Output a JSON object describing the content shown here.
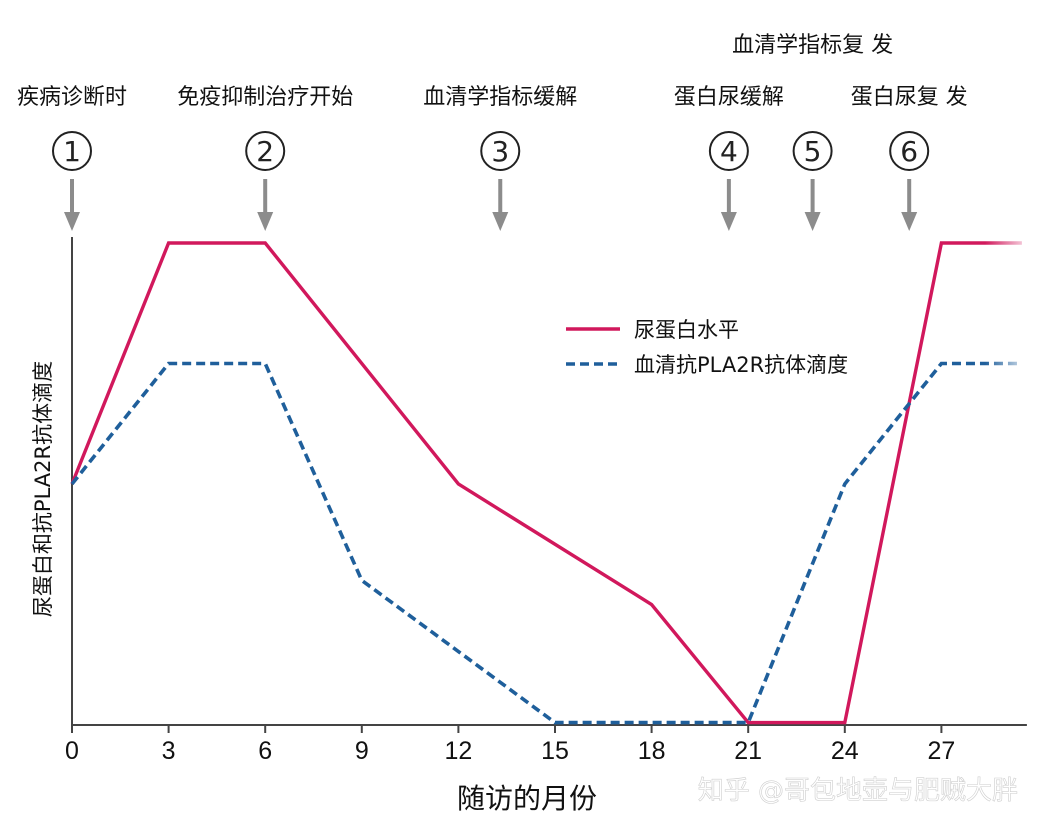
{
  "chart_data": {
    "type": "line",
    "xlabel": "随访的月份",
    "ylabel": "尿蛋白和抗PLA2R抗体滴度",
    "xticks": [
      0,
      3,
      6,
      9,
      12,
      15,
      18,
      21,
      24,
      27
    ],
    "xlim": [
      0,
      29.5
    ],
    "ylim": [
      0,
      100
    ],
    "grid": false,
    "legend_position": "upper-right-center",
    "series": [
      {
        "name": "尿蛋白水平",
        "color": "#d1185c",
        "style": "solid",
        "x": [
          0,
          3,
          6,
          12,
          18,
          21,
          24,
          27,
          29.5
        ],
        "y": [
          50,
          100,
          100,
          50,
          25,
          0.5,
          0.5,
          100,
          100
        ]
      },
      {
        "name": "血清抗PLA2R抗体滴度",
        "color": "#1f5f9b",
        "style": "dashed",
        "x": [
          0,
          3,
          6,
          9,
          15,
          21,
          24,
          27,
          29.5
        ],
        "y": [
          50,
          75,
          75,
          30,
          0.5,
          0.5,
          50,
          75,
          75
        ]
      }
    ],
    "events": [
      {
        "num": "①",
        "month": 0,
        "label": "疾病诊断时"
      },
      {
        "num": "②",
        "month": 6,
        "label": "免疫抑制治疗开始"
      },
      {
        "num": "③",
        "month": 13.3,
        "label": "血清学指标缓解"
      },
      {
        "num": "④",
        "month": 20.4,
        "label": "蛋白尿缓解"
      },
      {
        "num": "⑤",
        "month": 23.0,
        "label": "血清学指标复 发"
      },
      {
        "num": "⑥",
        "month": 26.0,
        "label": "蛋白尿复 发"
      }
    ]
  },
  "watermark": "知乎 @哥包地壶与肥贼大胖"
}
